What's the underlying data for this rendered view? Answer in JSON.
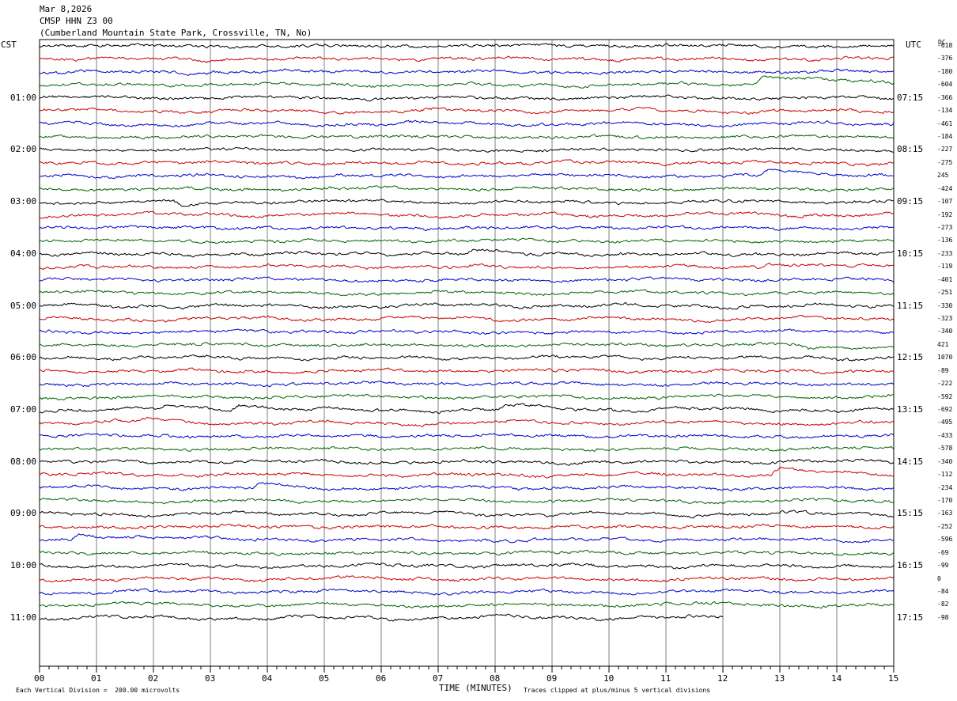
{
  "header": {
    "date": "Mar 8,2026",
    "station": "CMSP HHN Z3 00",
    "location": "(Cumberland Mountain State Park, Crossville, TN, No)"
  },
  "left_zone": "CST",
  "right_zone": "UTC",
  "dc_header": "DC",
  "chart_data": {
    "type": "line",
    "xlabel": "TIME (MINUTES)",
    "x_ticks": [
      "00",
      "01",
      "02",
      "03",
      "04",
      "05",
      "06",
      "07",
      "08",
      "09",
      "10",
      "11",
      "12",
      "13",
      "14",
      "15"
    ],
    "xlim": [
      0,
      15
    ],
    "rows": 45,
    "row_colors": [
      "#000000",
      "#cc0000",
      "#0000cc",
      "#006600"
    ],
    "left_hour_labels": [
      "01:00",
      "02:00",
      "03:00",
      "04:00",
      "05:00",
      "06:00",
      "07:00",
      "08:00",
      "09:00",
      "10:00",
      "11:00"
    ],
    "right_hour_labels": [
      "07:15",
      "08:15",
      "09:15",
      "10:15",
      "11:15",
      "12:15",
      "13:15",
      "14:15",
      "15:15",
      "16:15",
      "17:15"
    ],
    "dc_offsets": [
      "-618",
      "-376",
      "-180",
      "-604",
      "-366",
      "-134",
      "-461",
      "-184",
      "-227",
      "-275",
      "245",
      "-424",
      "-107",
      "-192",
      "-273",
      "-136",
      "-233",
      "-119",
      "-401",
      "-251",
      "-330",
      "-323",
      "-340",
      "421",
      "1070",
      "-89",
      "-222",
      "-592",
      "-692",
      "-495",
      "-433",
      "-578",
      "-340",
      "-112",
      "-234",
      "-170",
      "-163",
      "-252",
      "-596",
      "-69",
      "-99",
      "0",
      "-84",
      "-82",
      "-98"
    ],
    "last_row_end_minute": 12,
    "events": [
      {
        "row": 3,
        "minute": 12.7,
        "amp": -12,
        "decay": 1.5
      },
      {
        "row": 10,
        "minute": 12.8,
        "amp": -8,
        "decay": 1.2
      },
      {
        "row": 12,
        "minute": 2.5,
        "amp": 6,
        "decay": 0.5
      },
      {
        "row": 16,
        "minute": 7.6,
        "amp": -5,
        "decay": 0.4
      },
      {
        "row": 17,
        "minute": 12.8,
        "amp": -5,
        "decay": 0.6
      },
      {
        "row": 23,
        "minute": 13.5,
        "amp": 5,
        "decay": 1.5
      },
      {
        "row": 28,
        "minute": 2.2,
        "amp": -6,
        "decay": 0.6
      },
      {
        "row": 28,
        "minute": 3.5,
        "amp": -7,
        "decay": 0.5
      },
      {
        "row": 28,
        "minute": 8.2,
        "amp": -7,
        "decay": 0.7
      },
      {
        "row": 29,
        "minute": 1.9,
        "amp": -6,
        "decay": 0.5
      },
      {
        "row": 33,
        "minute": 13.0,
        "amp": -9,
        "decay": 0.8
      },
      {
        "row": 34,
        "minute": 3.9,
        "amp": -6,
        "decay": 0.5
      },
      {
        "row": 38,
        "minute": 0.7,
        "amp": -6,
        "decay": 1.5
      }
    ]
  },
  "footer": {
    "vertical_division": "Each Vertical Division =  200.00 microvolts",
    "clip_note": "Traces clipped at plus/minus 5 vertical divisions"
  }
}
